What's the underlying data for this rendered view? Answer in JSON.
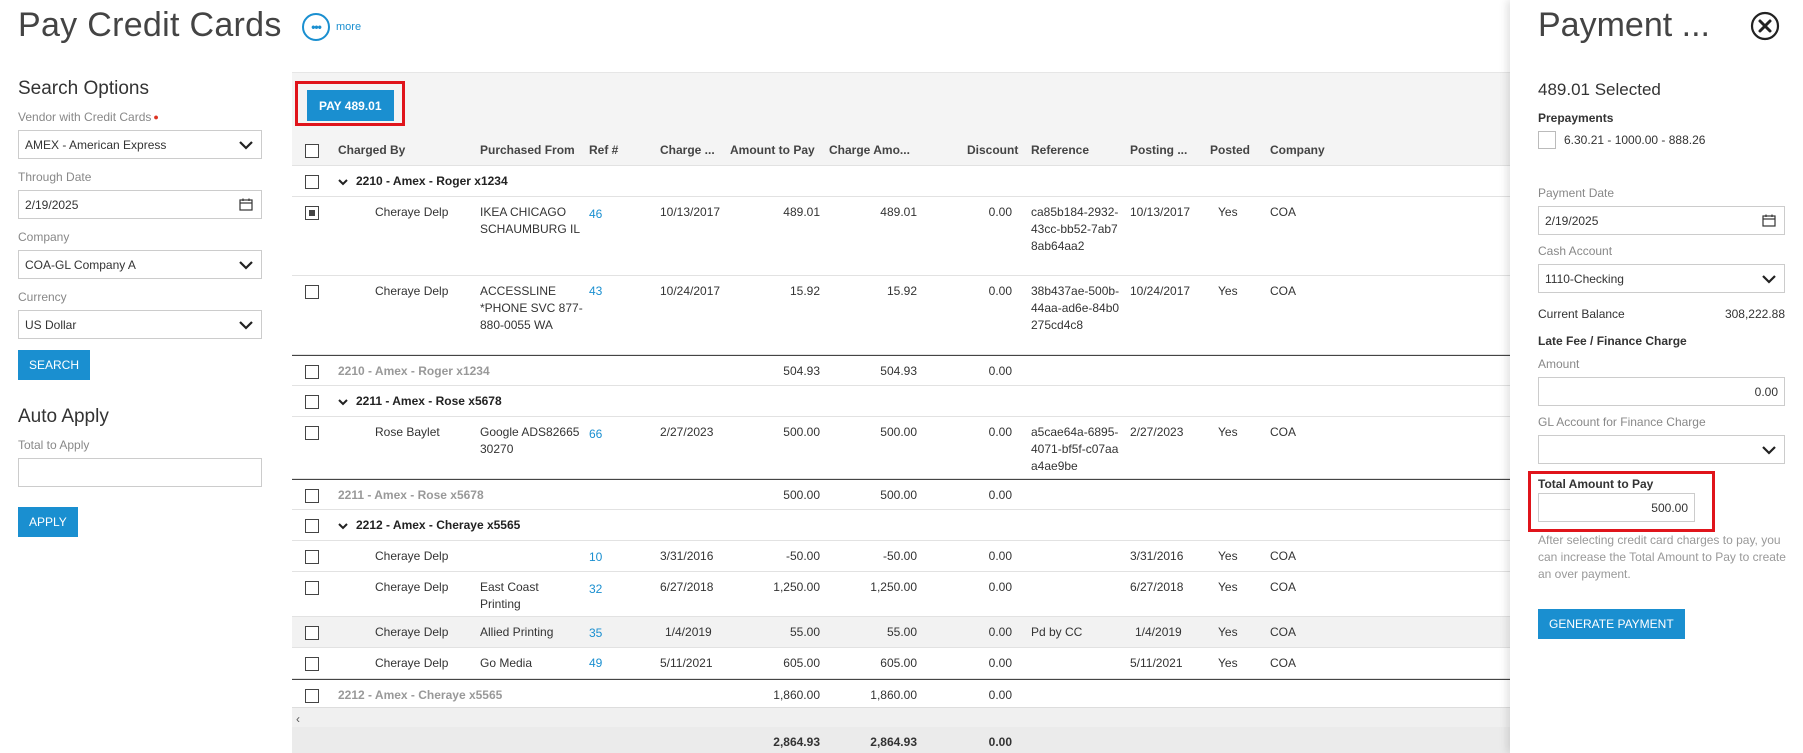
{
  "header": {
    "title": "Pay Credit Cards",
    "more_label": "more"
  },
  "search": {
    "heading": "Search Options",
    "vendor_label": "Vendor with Credit Cards",
    "vendor_value": "AMEX - American Express",
    "through_date_label": "Through Date",
    "through_date_value": "2/19/2025",
    "company_label": "Company",
    "company_value": "COA-GL Company A",
    "currency_label": "Currency",
    "currency_value": "US Dollar",
    "search_button": "SEARCH"
  },
  "auto_apply": {
    "heading": "Auto Apply",
    "total_label": "Total to Apply",
    "total_value": "",
    "apply_button": "APPLY"
  },
  "grid": {
    "pay_button": "PAY 489.01",
    "columns": [
      "Charged By",
      "Purchased From",
      "Ref #",
      "Charge ...",
      "Amount to Pay",
      "Charge Amo...",
      "Discount",
      "Reference",
      "Posting ...",
      "Posted",
      "Company"
    ],
    "groups": [
      {
        "title": "2210 - Amex - Roger x1234",
        "rows": [
          {
            "charged_by": "Cheraye Delp",
            "purchased_from": "IKEA CHICAGO SCHAUMBURG IL",
            "ref": "46",
            "charge_date": "10/13/2017",
            "amount_to_pay": "489.01",
            "charge_amount": "489.01",
            "discount": "0.00",
            "reference": "ca85b184-2932-43cc-bb52-7ab78ab64aa2",
            "posting_date": "10/13/2017",
            "posted": "Yes",
            "company": "COA",
            "checked": true
          },
          {
            "charged_by": "Cheraye Delp",
            "purchased_from": "ACCESSLINE *PHONE SVC 877-880-0055 WA",
            "ref": "43",
            "charge_date": "10/24/2017",
            "amount_to_pay": "15.92",
            "charge_amount": "15.92",
            "discount": "0.00",
            "reference": "38b437ae-500b-44aa-ad6e-84b0275cd4c8",
            "posting_date": "10/24/2017",
            "posted": "Yes",
            "company": "COA",
            "checked": false
          }
        ],
        "subtotal": {
          "label": "2210 - Amex - Roger x1234",
          "amount_to_pay": "504.93",
          "charge_amount": "504.93",
          "discount": "0.00"
        }
      },
      {
        "title": "2211 - Amex - Rose x5678",
        "rows": [
          {
            "charged_by": "Rose Baylet",
            "purchased_from": "Google ADS8266530270",
            "ref": "66",
            "charge_date": "2/27/2023",
            "amount_to_pay": "500.00",
            "charge_amount": "500.00",
            "discount": "0.00",
            "reference": "a5cae64a-6895-4071-bf5f-c07aaa4ae9be",
            "posting_date": "2/27/2023",
            "posted": "Yes",
            "company": "COA",
            "checked": false
          }
        ],
        "subtotal": {
          "label": "2211 - Amex - Rose x5678",
          "amount_to_pay": "500.00",
          "charge_amount": "500.00",
          "discount": "0.00"
        }
      },
      {
        "title": "2212 - Amex - Cheraye x5565",
        "rows": [
          {
            "charged_by": "Cheraye Delp",
            "purchased_from": "",
            "ref": "10",
            "charge_date": "3/31/2016",
            "amount_to_pay": "-50.00",
            "charge_amount": "-50.00",
            "discount": "0.00",
            "reference": "",
            "posting_date": "3/31/2016",
            "posted": "Yes",
            "company": "COA",
            "checked": false
          },
          {
            "charged_by": "Cheraye Delp",
            "purchased_from": "East Coast Printing",
            "ref": "32",
            "charge_date": "6/27/2018",
            "amount_to_pay": "1,250.00",
            "charge_amount": "1,250.00",
            "discount": "0.00",
            "reference": "",
            "posting_date": "6/27/2018",
            "posted": "Yes",
            "company": "COA",
            "checked": false
          },
          {
            "charged_by": "Cheraye Delp",
            "purchased_from": "Allied Printing",
            "ref": "35",
            "charge_date": "1/4/2019",
            "amount_to_pay": "55.00",
            "charge_amount": "55.00",
            "discount": "0.00",
            "reference": "Pd by CC",
            "posting_date": "1/4/2019",
            "posted": "Yes",
            "company": "COA",
            "checked": false
          },
          {
            "charged_by": "Cheraye Delp",
            "purchased_from": "Go Media",
            "ref": "49",
            "charge_date": "5/11/2021",
            "amount_to_pay": "605.00",
            "charge_amount": "605.00",
            "discount": "0.00",
            "reference": "",
            "posting_date": "5/11/2021",
            "posted": "Yes",
            "company": "COA",
            "checked": false
          }
        ],
        "subtotal": {
          "label": "2212 - Amex - Cheraye x5565",
          "amount_to_pay": "1,860.00",
          "charge_amount": "1,860.00",
          "discount": "0.00"
        }
      }
    ],
    "totals": {
      "amount_to_pay": "2,864.93",
      "charge_amount": "2,864.93",
      "discount": "0.00"
    }
  },
  "payment": {
    "title": "Payment ...",
    "selected": "489.01 Selected",
    "prepayments_label": "Prepayments",
    "prepayment_item": "6.30.21 - 1000.00 - 888.26",
    "payment_date_label": "Payment Date",
    "payment_date_value": "2/19/2025",
    "cash_account_label": "Cash Account",
    "cash_account_value": "1110-Checking",
    "current_balance_label": "Current Balance",
    "current_balance_value": "308,222.88",
    "late_fee_label": "Late Fee / Finance Charge",
    "amount_label": "Amount",
    "amount_value": "0.00",
    "gl_account_label": "GL Account for Finance Charge",
    "gl_account_value": "",
    "total_label": "Total Amount to Pay",
    "total_value": "500.00",
    "help_text": "After selecting credit card charges to pay, you can increase the Total Amount to Pay to create an over payment.",
    "generate_button": "GENERATE PAYMENT"
  }
}
